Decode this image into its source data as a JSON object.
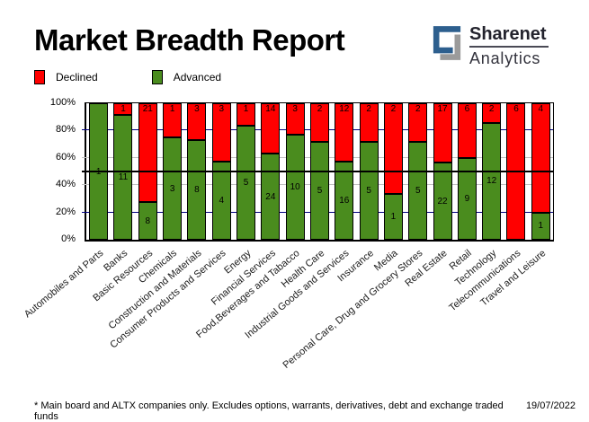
{
  "title": "Market Breadth Report",
  "logo": {
    "line1": "Sharenet",
    "line2": "Analytics",
    "blue": "#2d5f8e",
    "gray": "#9b9b9b"
  },
  "legend": {
    "declined_label": "Declined",
    "advanced_label": "Advanced"
  },
  "footer": {
    "note": "* Main board and ALTX companies only. Excludes options, warrants, derivatives, debt and exchange traded funds",
    "date": "19/07/2022"
  },
  "chart_data": {
    "type": "bar",
    "stacked": true,
    "normalized": "percent",
    "title": "Market Breadth Report",
    "xlabel": "",
    "ylabel": "",
    "ylim": [
      0,
      100
    ],
    "legend_position": "top-left",
    "grid": true,
    "categories": [
      "Automobiles and Parts",
      "Banks",
      "Basic Resources",
      "Chemicals",
      "Construction and Materials",
      "Consumer Products and Services",
      "Energy",
      "Financial Services",
      "Food,Beverages and Tabacco",
      "Health Care",
      "Industrial Goods and Services",
      "Insurance",
      "Media",
      "Personal Care, Drug and Grocery Stores",
      "Real Estate",
      "Retail",
      "Technology",
      "Telecommunications",
      "Travel and Leisure"
    ],
    "series": [
      {
        "name": "Declined",
        "color": "#ff0000",
        "values": [
          0,
          1,
          21,
          1,
          3,
          3,
          1,
          14,
          3,
          2,
          12,
          2,
          2,
          2,
          17,
          6,
          2,
          6,
          4
        ]
      },
      {
        "name": "Advanced",
        "color": "#4a8c1e",
        "values": [
          1,
          11,
          8,
          3,
          8,
          4,
          5,
          24,
          10,
          5,
          16,
          5,
          1,
          5,
          22,
          9,
          12,
          0,
          1
        ]
      }
    ],
    "y_ticks": [
      {
        "label": "100%",
        "pct": 100
      },
      {
        "label": "80%",
        "pct": 80
      },
      {
        "label": "60%",
        "pct": 60
      },
      {
        "label": "40%",
        "pct": 40
      },
      {
        "label": "20%",
        "pct": 20
      },
      {
        "label": "0%",
        "pct": 0
      }
    ],
    "gridlines": [
      {
        "pct": 80,
        "color": "#000080"
      },
      {
        "pct": 60,
        "color": "#c0c0c0"
      },
      {
        "pct": 40,
        "color": "#c0c0c0"
      },
      {
        "pct": 20,
        "color": "#000080"
      }
    ],
    "midline_pct": 50,
    "midline_color": "#000000"
  }
}
